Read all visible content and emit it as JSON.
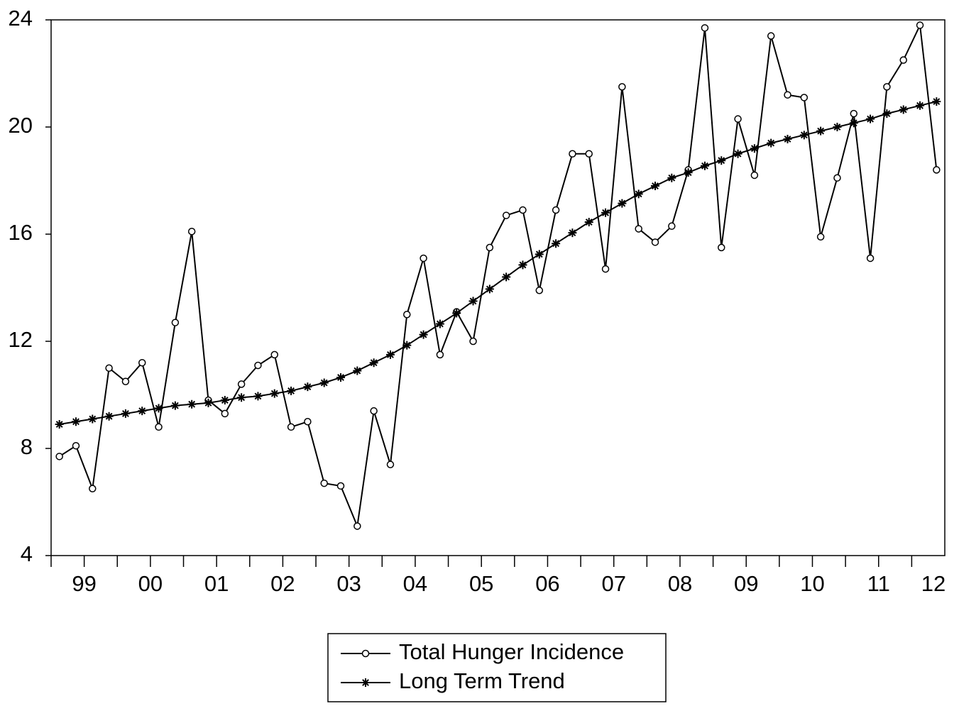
{
  "chart_data": {
    "type": "line",
    "categories": [
      null,
      "99",
      null,
      null,
      null,
      "00",
      null,
      null,
      null,
      "01",
      null,
      null,
      null,
      "02",
      null,
      null,
      null,
      "03",
      null,
      null,
      null,
      "04",
      null,
      null,
      null,
      "05",
      null,
      null,
      null,
      "06",
      null,
      null,
      null,
      "07",
      null,
      null,
      null,
      "08",
      null,
      null,
      null,
      "09",
      null,
      null,
      null,
      "10",
      null,
      null,
      null,
      "11",
      null,
      null,
      null,
      "12"
    ],
    "series": [
      {
        "name": "Total Hunger Incidence",
        "color": "#000000",
        "marker": "circle",
        "values": [
          7.7,
          8.1,
          6.5,
          11.0,
          10.5,
          11.2,
          8.8,
          12.7,
          16.1,
          9.8,
          9.3,
          10.4,
          11.1,
          11.5,
          8.8,
          9.0,
          6.7,
          6.6,
          5.1,
          9.4,
          7.4,
          13.0,
          15.1,
          11.5,
          13.1,
          12.0,
          15.5,
          16.7,
          16.9,
          13.9,
          16.9,
          19.0,
          19.0,
          14.7,
          21.5,
          16.2,
          15.7,
          16.3,
          18.4,
          23.7,
          15.5,
          20.3,
          18.2,
          23.4,
          21.2,
          21.1,
          15.9,
          18.1,
          20.5,
          15.1,
          21.5,
          22.5,
          23.8,
          18.4
        ]
      },
      {
        "name": "Long Term Trend",
        "color": "#000000",
        "marker": "star",
        "values": [
          8.9,
          9.0,
          9.1,
          9.2,
          9.3,
          9.4,
          9.5,
          9.6,
          9.65,
          9.7,
          9.8,
          9.9,
          9.95,
          10.05,
          10.15,
          10.3,
          10.45,
          10.65,
          10.9,
          11.2,
          11.5,
          11.85,
          12.25,
          12.65,
          13.05,
          13.5,
          13.95,
          14.4,
          14.85,
          15.25,
          15.65,
          16.05,
          16.45,
          16.8,
          17.15,
          17.5,
          17.8,
          18.1,
          18.3,
          18.55,
          18.75,
          19.0,
          19.2,
          19.4,
          19.55,
          19.7,
          19.85,
          20.0,
          20.15,
          20.3,
          20.5,
          20.65,
          20.8,
          20.95
        ]
      }
    ],
    "ylim": [
      4,
      24
    ],
    "yticks": [
      4,
      8,
      12,
      16,
      20,
      24
    ],
    "grid": false,
    "legend": "bottom"
  }
}
